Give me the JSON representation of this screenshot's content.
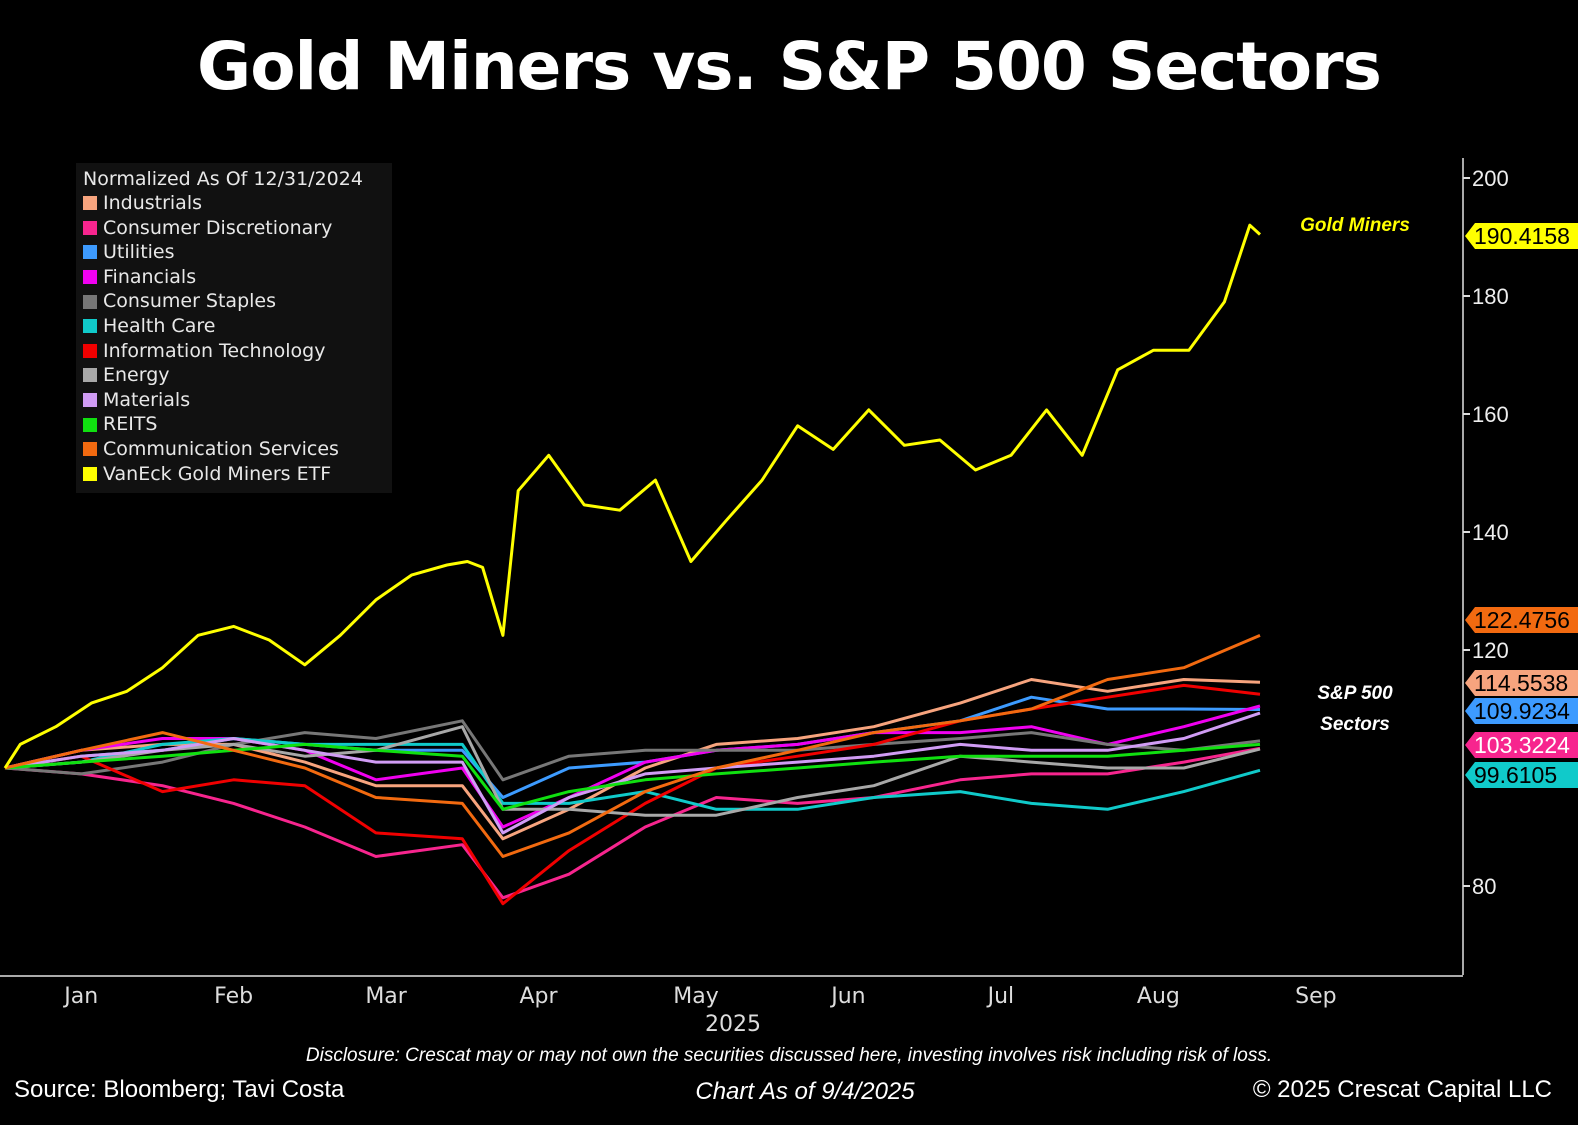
{
  "title": "Gold Miners vs. S&P 500 Sectors",
  "annotations": {
    "gold": "Gold Miners",
    "sectors_line1": "S&P 500",
    "sectors_line2": "Sectors"
  },
  "footer": {
    "disclosure": "Disclosure: Crescat may or may not own the securities discussed here, investing involves risk including risk of loss.",
    "source": "Source: Bloomberg; Tavi Costa",
    "chart_date": "Chart As of 9/4/2025",
    "copyright": "© 2025 Crescat Capital LLC"
  },
  "chart_data": {
    "type": "line",
    "title": "Gold Miners vs. S&P 500 Sectors",
    "legend_title": "Normalized As Of 12/31/2024",
    "legend_position": "top-left",
    "y_axis_position": "right",
    "ylim": [
      66,
      203
    ],
    "yticks": [
      80,
      120,
      140,
      160,
      180,
      200
    ],
    "xlim": [
      "2024-12-31",
      "2025-10-10"
    ],
    "xticks": [
      {
        "label": "Jan",
        "date": "2025-01-15"
      },
      {
        "label": "Feb",
        "date": "2025-02-14"
      },
      {
        "label": "Mar",
        "date": "2025-03-16"
      },
      {
        "label": "Apr",
        "date": "2025-04-15"
      },
      {
        "label": "May",
        "date": "2025-05-16"
      },
      {
        "label": "Jun",
        "date": "2025-06-15"
      },
      {
        "label": "Jul",
        "date": "2025-07-15"
      },
      {
        "label": "Aug",
        "date": "2025-08-15"
      },
      {
        "label": "Sep",
        "date": "2025-09-15"
      }
    ],
    "xlabel": "2025",
    "grid": false,
    "sector_dates": [
      "2024-12-31",
      "2025-01-15",
      "2025-01-31",
      "2025-02-14",
      "2025-02-28",
      "2025-03-14",
      "2025-03-31",
      "2025-04-08",
      "2025-04-21",
      "2025-05-06",
      "2025-05-20",
      "2025-06-05",
      "2025-06-20",
      "2025-07-07",
      "2025-07-21",
      "2025-08-05",
      "2025-08-20",
      "2025-09-04"
    ],
    "series": [
      {
        "name": "Industrials",
        "color": "#F7A47E",
        "last_label": "114.5538",
        "label_text_color": "#000",
        "values": [
          100,
          103,
          104,
          104,
          101,
          97,
          97,
          88,
          93,
          100,
          104,
          105,
          107,
          111,
          115,
          113,
          115,
          114.55
        ]
      },
      {
        "name": "Consumer Discretionary",
        "color": "#F7258E",
        "last_label": "103.3224",
        "label_text_color": "#fff",
        "values": [
          100,
          99,
          97,
          94,
          90,
          85,
          87,
          78,
          82,
          90,
          95,
          94,
          95,
          98,
          99,
          99,
          101,
          103.32
        ]
      },
      {
        "name": "Utilities",
        "color": "#3D9BFF",
        "last_label": "109.9234",
        "label_text_color": "#000",
        "values": [
          100,
          102,
          103,
          105,
          104,
          103,
          103,
          95,
          100,
          101,
          103,
          104,
          106,
          108,
          112,
          110,
          110,
          109.92
        ]
      },
      {
        "name": "Financials",
        "color": "#F000F0",
        "values": [
          100,
          103,
          105,
          105,
          103,
          98,
          100,
          90,
          95,
          101,
          103,
          104,
          106,
          106,
          107,
          104,
          107,
          110.5
        ]
      },
      {
        "name": "Consumer Staples",
        "color": "#777777",
        "values": [
          100,
          99,
          101,
          104,
          106,
          105,
          108,
          98,
          102,
          103,
          103,
          103,
          104,
          105,
          106,
          104,
          103,
          104.6
        ]
      },
      {
        "name": "Health Care",
        "color": "#10CACA",
        "last_label": "99.6105",
        "label_text_color": "#000",
        "values": [
          100,
          101,
          104,
          105,
          104,
          104,
          104,
          94,
          94,
          96,
          93,
          93,
          95,
          96,
          94,
          93,
          96,
          99.61
        ]
      },
      {
        "name": "Information Technology",
        "color": "#F00000",
        "values": [
          100,
          102,
          96,
          98,
          97,
          89,
          88,
          77,
          86,
          94,
          100,
          102,
          104,
          108,
          110,
          112,
          114,
          112.5
        ]
      },
      {
        "name": "Energy",
        "color": "#A8A8A8",
        "values": [
          100,
          101,
          103,
          104,
          102,
          103,
          107,
          93,
          93,
          92,
          92,
          95,
          97,
          102,
          101,
          100,
          100,
          103.2
        ]
      },
      {
        "name": "Materials",
        "color": "#D09CF4",
        "values": [
          100,
          102,
          103,
          105,
          103,
          101,
          101,
          89,
          95,
          99,
          100,
          101,
          102,
          104,
          103,
          103,
          105,
          109.3
        ]
      },
      {
        "name": "REITS",
        "color": "#10E010",
        "values": [
          100,
          101,
          102,
          103,
          104,
          103,
          102,
          93,
          96,
          98,
          99,
          100,
          101,
          102,
          102,
          102,
          103,
          104
        ]
      },
      {
        "name": "Communication Services",
        "color": "#F26A10",
        "last_label": "122.4756",
        "label_text_color": "#000",
        "values": [
          100,
          103,
          106,
          103,
          100,
          95,
          94,
          85,
          89,
          96,
          100,
          103,
          106,
          108,
          110,
          115,
          117,
          122.48
        ]
      },
      {
        "name": "VanEck Gold Miners ETF",
        "color": "#FFFF00",
        "last_label": "190.4158",
        "label_text_color": "#000",
        "dates": [
          "2024-12-31",
          "2025-01-03",
          "2025-01-10",
          "2025-01-17",
          "2025-01-24",
          "2025-01-31",
          "2025-02-07",
          "2025-02-14",
          "2025-02-21",
          "2025-02-28",
          "2025-03-07",
          "2025-03-14",
          "2025-03-21",
          "2025-03-28",
          "2025-04-01",
          "2025-04-04",
          "2025-04-08",
          "2025-04-11",
          "2025-04-17",
          "2025-04-24",
          "2025-05-01",
          "2025-05-08",
          "2025-05-15",
          "2025-05-22",
          "2025-05-29",
          "2025-06-05",
          "2025-06-12",
          "2025-06-19",
          "2025-06-26",
          "2025-07-03",
          "2025-07-10",
          "2025-07-17",
          "2025-07-24",
          "2025-07-31",
          "2025-08-07",
          "2025-08-14",
          "2025-08-21",
          "2025-08-28",
          "2025-09-02",
          "2025-09-04"
        ],
        "values": [
          100,
          104,
          107,
          111,
          113,
          117,
          122.5,
          124,
          121.7,
          117.5,
          122.5,
          128.5,
          132.7,
          134.4,
          135,
          134,
          122.5,
          147,
          153,
          144.6,
          143.7,
          148.8,
          135,
          142,
          148.8,
          158,
          154,
          160.7,
          154.7,
          155.6,
          150.5,
          153,
          160.7,
          153,
          167.5,
          170.8,
          170.8,
          179,
          192,
          190.42
        ]
      }
    ]
  }
}
